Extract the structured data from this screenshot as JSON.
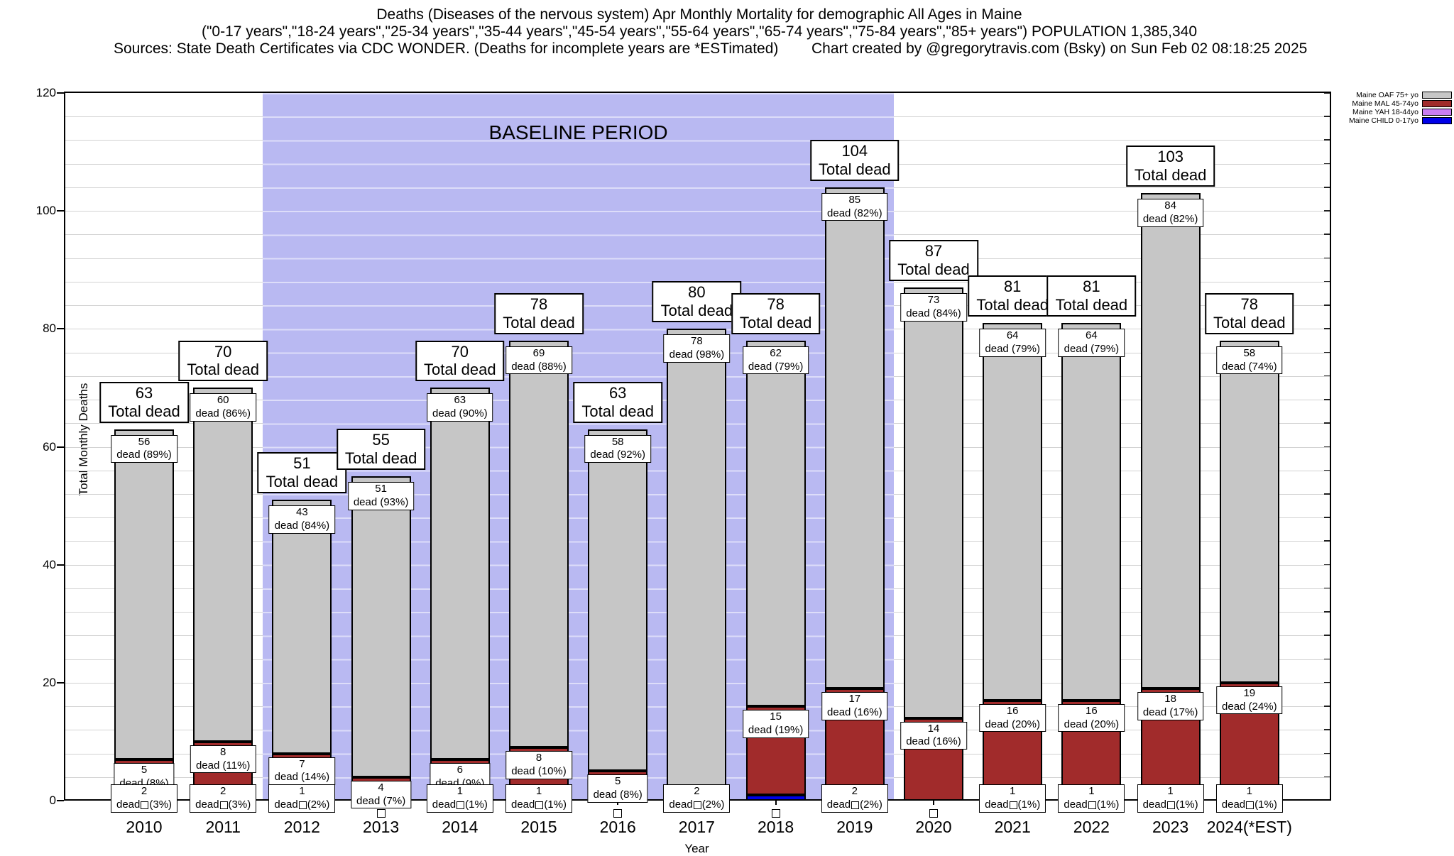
{
  "title": {
    "line1": "Deaths (Diseases of the nervous system) Apr Monthly Mortality for demographic All Ages in Maine",
    "line2": "(\"0-17 years\",\"18-24 years\",\"25-34 years\",\"35-44 years\",\"45-54 years\",\"55-64 years\",\"65-74 years\",\"75-84 years\",\"85+ years\") POPULATION 1,385,340",
    "line3_left": "Sources: State Death Certificates via CDC WONDER. (Deaths for incomplete years are *ESTimated)",
    "line3_right": "Chart created by @gregorytravis.com (Bsky) on Sun Feb 02 08:18:25 2025"
  },
  "legend": [
    {
      "label": "Maine OAF 75+ yo",
      "series": "oaf",
      "color": "#c6c6c6"
    },
    {
      "label": "Maine MAL 45-74yo",
      "series": "mal",
      "color": "#a12b2b"
    },
    {
      "label": "Maine YAH 18-44yo",
      "series": "yah",
      "color": "#c97ef2"
    },
    {
      "label": "Maine CHILD 0-17yo",
      "series": "child",
      "color": "#0000e8"
    }
  ],
  "chart_data": {
    "type": "bar",
    "stacked": true,
    "title": "Deaths (Diseases of the nervous system) Apr Monthly Mortality for demographic All Ages in Maine",
    "xlabel": "Year",
    "ylabel": "Total Monthly Deaths",
    "ylim": [
      0,
      120
    ],
    "yticks": [
      0,
      20,
      40,
      60,
      80,
      100,
      120
    ],
    "minor_grid_step": 4,
    "grid": true,
    "legend_position": "top-right",
    "baseline_label": "BASELINE PERIOD",
    "baseline_span_years": [
      "2012",
      "2019"
    ],
    "baseline_color": "#b9b9f2",
    "categories": [
      "2010",
      "2011",
      "2012",
      "2013",
      "2014",
      "2015",
      "2016",
      "2017",
      "2018",
      "2019",
      "2020",
      "2021",
      "2022",
      "2023",
      "2024(*EST)"
    ],
    "series": [
      {
        "name": "Maine CHILD 0-17yo",
        "key": "child",
        "color": "#0000e8",
        "values": [
          0,
          0,
          0,
          0,
          0,
          0,
          0,
          0,
          1,
          0,
          0,
          0,
          0,
          0,
          0
        ]
      },
      {
        "name": "Maine YAH 18-44yo",
        "key": "yah",
        "color": "#c97ef2",
        "values": [
          2,
          2,
          1,
          0,
          1,
          1,
          0,
          0,
          0,
          2,
          0,
          1,
          1,
          1,
          1
        ]
      },
      {
        "name": "Maine MAL 45-74yo",
        "key": "mal",
        "color": "#a12b2b",
        "values": [
          5,
          8,
          7,
          4,
          6,
          8,
          5,
          2,
          15,
          17,
          14,
          16,
          16,
          18,
          19
        ]
      },
      {
        "name": "Maine OAF 75+ yo",
        "key": "oaf",
        "color": "#c6c6c6",
        "values": [
          56,
          60,
          43,
          51,
          63,
          69,
          58,
          78,
          62,
          85,
          73,
          64,
          64,
          84,
          58
        ]
      }
    ],
    "totals": [
      63,
      70,
      51,
      55,
      70,
      78,
      63,
      80,
      78,
      104,
      87,
      81,
      81,
      103,
      78
    ],
    "total_label_suffix": "Total dead",
    "years": [
      {
        "year": "2010",
        "total": "63",
        "oaf": [
          "56",
          "dead (89%)"
        ],
        "mal": [
          "5",
          "dead (8%)"
        ],
        "bottom": {
          "num": "2",
          "pct": "(3%)"
        },
        "square": false
      },
      {
        "year": "2011",
        "total": "70",
        "oaf": [
          "60",
          "dead (86%)"
        ],
        "mal": [
          "8",
          "dead (11%)"
        ],
        "bottom": {
          "num": "2",
          "pct": "(3%)"
        },
        "square": false
      },
      {
        "year": "2012",
        "total": "51",
        "oaf": [
          "43",
          "dead (84%)"
        ],
        "mal": [
          "7",
          "dead (14%)"
        ],
        "bottom": {
          "num": "1",
          "pct": "(2%)"
        },
        "square": false
      },
      {
        "year": "2013",
        "total": "55",
        "oaf": [
          "51",
          "dead (93%)"
        ],
        "mal": [
          "4",
          "dead (7%)"
        ],
        "bottom": null,
        "square": true
      },
      {
        "year": "2014",
        "total": "70",
        "oaf": [
          "63",
          "dead (90%)"
        ],
        "mal": [
          "6",
          "dead (9%)"
        ],
        "bottom": {
          "num": "1",
          "pct": "(1%)"
        },
        "square": false
      },
      {
        "year": "2015",
        "total": "78",
        "oaf": [
          "69",
          "dead (88%)"
        ],
        "mal": [
          "8",
          "dead (10%)"
        ],
        "bottom": {
          "num": "1",
          "pct": "(1%)"
        },
        "square": false
      },
      {
        "year": "2016",
        "total": "63",
        "oaf": [
          "58",
          "dead (92%)"
        ],
        "mal": [
          "5",
          "dead (8%)"
        ],
        "bottom": null,
        "square": true
      },
      {
        "year": "2017",
        "total": "80",
        "oaf": [
          "78",
          "dead (98%)"
        ],
        "mal": null,
        "bottom": {
          "num": "2",
          "pct": "(2%)"
        },
        "square": false
      },
      {
        "year": "2018",
        "total": "78",
        "oaf": [
          "62",
          "dead (79%)"
        ],
        "mal": [
          "15",
          "dead (19%)"
        ],
        "bottom": null,
        "square": true
      },
      {
        "year": "2019",
        "total": "104",
        "oaf": [
          "85",
          "dead (82%)"
        ],
        "mal": [
          "17",
          "dead (16%)"
        ],
        "bottom": {
          "num": "2",
          "pct": "(2%)"
        },
        "square": false
      },
      {
        "year": "2020",
        "total": "87",
        "oaf": [
          "73",
          "dead (84%)"
        ],
        "mal": [
          "14",
          "dead (16%)"
        ],
        "bottom": null,
        "square": true
      },
      {
        "year": "2021",
        "total": "81",
        "oaf": [
          "64",
          "dead (79%)"
        ],
        "mal": [
          "16",
          "dead (20%)"
        ],
        "bottom": {
          "num": "1",
          "pct": "(1%)"
        },
        "square": false
      },
      {
        "year": "2022",
        "total": "81",
        "oaf": [
          "64",
          "dead (79%)"
        ],
        "mal": [
          "16",
          "dead (20%)"
        ],
        "bottom": {
          "num": "1",
          "pct": "(1%)"
        },
        "square": false
      },
      {
        "year": "2023",
        "total": "103",
        "oaf": [
          "84",
          "dead (82%)"
        ],
        "mal": [
          "18",
          "dead (17%)"
        ],
        "bottom": {
          "num": "1",
          "pct": "(1%)"
        },
        "square": false
      },
      {
        "year": "2024(*EST)",
        "total": "78",
        "oaf": [
          "58",
          "dead (74%)"
        ],
        "mal": [
          "19",
          "dead (24%)"
        ],
        "bottom": {
          "num": "1",
          "pct": "(1%)"
        },
        "square": false
      }
    ],
    "bottom_label_word": "dead"
  }
}
